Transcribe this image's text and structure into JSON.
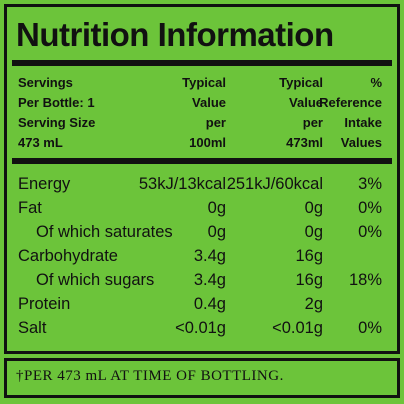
{
  "label": {
    "title": "Nutrition Information",
    "header": [
      [
        "Servings",
        "Per Bottle: 1",
        "Serving Size",
        "473 mL"
      ],
      [
        "Typical",
        "Value",
        "per",
        "100ml"
      ],
      [
        "Typical",
        "Value",
        "per",
        "473ml"
      ],
      [
        "%",
        "Reference",
        "Intake",
        "Values"
      ]
    ],
    "rows": [
      [
        "Energy",
        "53kJ/13kcal",
        "251kJ/60kcal",
        "3%"
      ],
      [
        "Fat",
        "0g",
        "0g",
        "0%"
      ],
      [
        "Of which saturates",
        "0g",
        "0g",
        "0%"
      ],
      [
        "Carbohydrate",
        "3.4g",
        "16g",
        null
      ],
      [
        "Of which sugars",
        "3.4g",
        "16g",
        "18%"
      ],
      [
        "Protein",
        "0.4g",
        "2g",
        null
      ],
      [
        "Salt",
        "<0.01g",
        "<0.01g",
        "0%"
      ]
    ],
    "footnote": "†PER 473 mL AT TIME OF BOTTLING."
  }
}
